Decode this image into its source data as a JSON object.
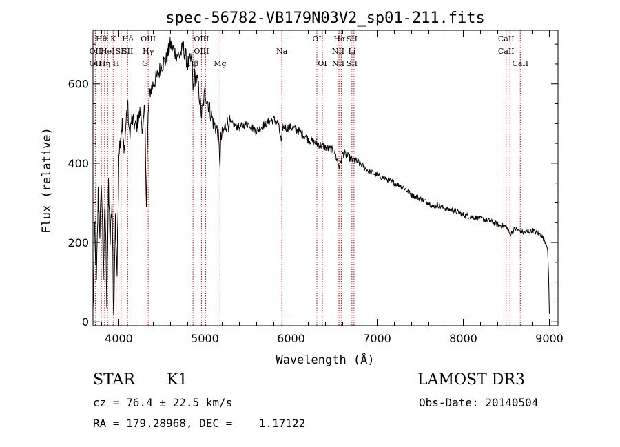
{
  "chart_data": {
    "type": "line",
    "title": "spec-56782-VB179N03V2_sp01-211.fits",
    "xlabel": "Wavelength (Å)",
    "ylabel": "Flux (relative)",
    "xlim": [
      3700,
      9100
    ],
    "ylim": [
      -10,
      735
    ],
    "xticks": [
      4000,
      5000,
      6000,
      7000,
      8000,
      9000
    ],
    "yticks": [
      0,
      200,
      400,
      600
    ],
    "xtick_labels": [
      "4000",
      "5000",
      "6000",
      "7000",
      "8000",
      "9000"
    ],
    "ytick_labels": [
      "0",
      "200",
      "400",
      "600"
    ],
    "series": [
      {
        "name": "flux",
        "x": [
          3700,
          3720,
          3740,
          3760,
          3780,
          3800,
          3820,
          3840,
          3860,
          3880,
          3900,
          3920,
          3940,
          3960,
          3980,
          4000,
          4020,
          4040,
          4060,
          4080,
          4100,
          4120,
          4150,
          4200,
          4250,
          4280,
          4300,
          4320,
          4340,
          4360,
          4400,
          4450,
          4500,
          4550,
          4600,
          4650,
          4700,
          4750,
          4800,
          4850,
          4861,
          4880,
          4920,
          4960,
          5000,
          5050,
          5100,
          5150,
          5175,
          5185,
          5200,
          5250,
          5300,
          5400,
          5500,
          5600,
          5700,
          5800,
          5850,
          5890,
          5900,
          5950,
          6000,
          6100,
          6200,
          6300,
          6400,
          6500,
          6563,
          6600,
          6700,
          6800,
          6900,
          7000,
          7100,
          7200,
          7300,
          7400,
          7500,
          7600,
          7650,
          7700,
          7800,
          7900,
          8000,
          8100,
          8200,
          8300,
          8400,
          8500,
          8542,
          8600,
          8700,
          8800,
          8900,
          8960,
          8980,
          8990,
          9000
        ],
        "values": [
          20,
          240,
          90,
          320,
          230,
          350,
          120,
          300,
          60,
          330,
          200,
          300,
          10,
          260,
          120,
          430,
          470,
          500,
          420,
          490,
          560,
          470,
          510,
          490,
          530,
          480,
          540,
          300,
          520,
          580,
          600,
          620,
          650,
          660,
          700,
          680,
          670,
          690,
          650,
          660,
          580,
          620,
          600,
          520,
          580,
          540,
          500,
          480,
          400,
          460,
          470,
          500,
          500,
          490,
          500,
          480,
          500,
          510,
          500,
          450,
          490,
          490,
          490,
          480,
          460,
          450,
          440,
          430,
          390,
          425,
          410,
          400,
          380,
          370,
          360,
          350,
          340,
          320,
          310,
          300,
          290,
          295,
          285,
          280,
          270,
          265,
          260,
          255,
          245,
          240,
          220,
          235,
          225,
          230,
          220,
          200,
          180,
          120,
          20
        ]
      }
    ],
    "lines": [
      {
        "wl": 3727,
        "labels": [
          "",
          "OII",
          "OII"
        ]
      },
      {
        "wl": 3797,
        "labels": [
          "Hθ",
          "",
          ""
        ]
      },
      {
        "wl": 3835,
        "labels": [
          "",
          "",
          "Hη"
        ]
      },
      {
        "wl": 3870,
        "labels": [
          "",
          "HeI",
          ""
        ]
      },
      {
        "wl": 3934,
        "labels": [
          "K",
          "",
          ""
        ]
      },
      {
        "wl": 3968,
        "labels": [
          "",
          "",
          "H"
        ]
      },
      {
        "wl": 4026,
        "labels": [
          "",
          "SII",
          ""
        ]
      },
      {
        "wl": 4102,
        "labels": [
          "Hδ",
          "SII",
          ""
        ]
      },
      {
        "wl": 4304,
        "labels": [
          "",
          "",
          "G"
        ]
      },
      {
        "wl": 4341,
        "labels": [
          "OIII",
          "Hγ",
          ""
        ]
      },
      {
        "wl": 4861,
        "labels": [
          "",
          "",
          "Hβ"
        ]
      },
      {
        "wl": 4959,
        "labels": [
          "OIII",
          "OIII",
          ""
        ]
      },
      {
        "wl": 5007,
        "labels": [
          "",
          "",
          ""
        ]
      },
      {
        "wl": 5175,
        "labels": [
          "",
          "",
          "Mg"
        ]
      },
      {
        "wl": 5893,
        "labels": [
          "",
          "Na",
          ""
        ]
      },
      {
        "wl": 6300,
        "labels": [
          "OI",
          "",
          ""
        ]
      },
      {
        "wl": 6364,
        "labels": [
          "",
          "",
          "OI"
        ]
      },
      {
        "wl": 6548,
        "labels": [
          "",
          "NII",
          "NII"
        ]
      },
      {
        "wl": 6563,
        "labels": [
          "Hα",
          "",
          ""
        ]
      },
      {
        "wl": 6583,
        "labels": [
          "",
          "",
          ""
        ]
      },
      {
        "wl": 6707,
        "labels": [
          "SII",
          "Li",
          "SII"
        ]
      },
      {
        "wl": 6731,
        "labels": [
          "",
          "",
          ""
        ]
      },
      {
        "wl": 8498,
        "labels": [
          "CaII",
          "CaII",
          ""
        ]
      },
      {
        "wl": 8542,
        "labels": [
          "",
          "",
          ""
        ]
      },
      {
        "wl": 8662,
        "labels": [
          "",
          "",
          "CaII"
        ]
      }
    ],
    "colors": {
      "line": "#c00000",
      "spectrum": "#000000"
    }
  },
  "info": {
    "object_class": "STAR",
    "subclass": "K1",
    "survey": "LAMOST DR3",
    "cz": "cz = 76.4 ± 22.5 km/s",
    "obs_date": "Obs-Date: 20140504",
    "coords": "RA = 179.28968, DEC =    1.17122"
  }
}
